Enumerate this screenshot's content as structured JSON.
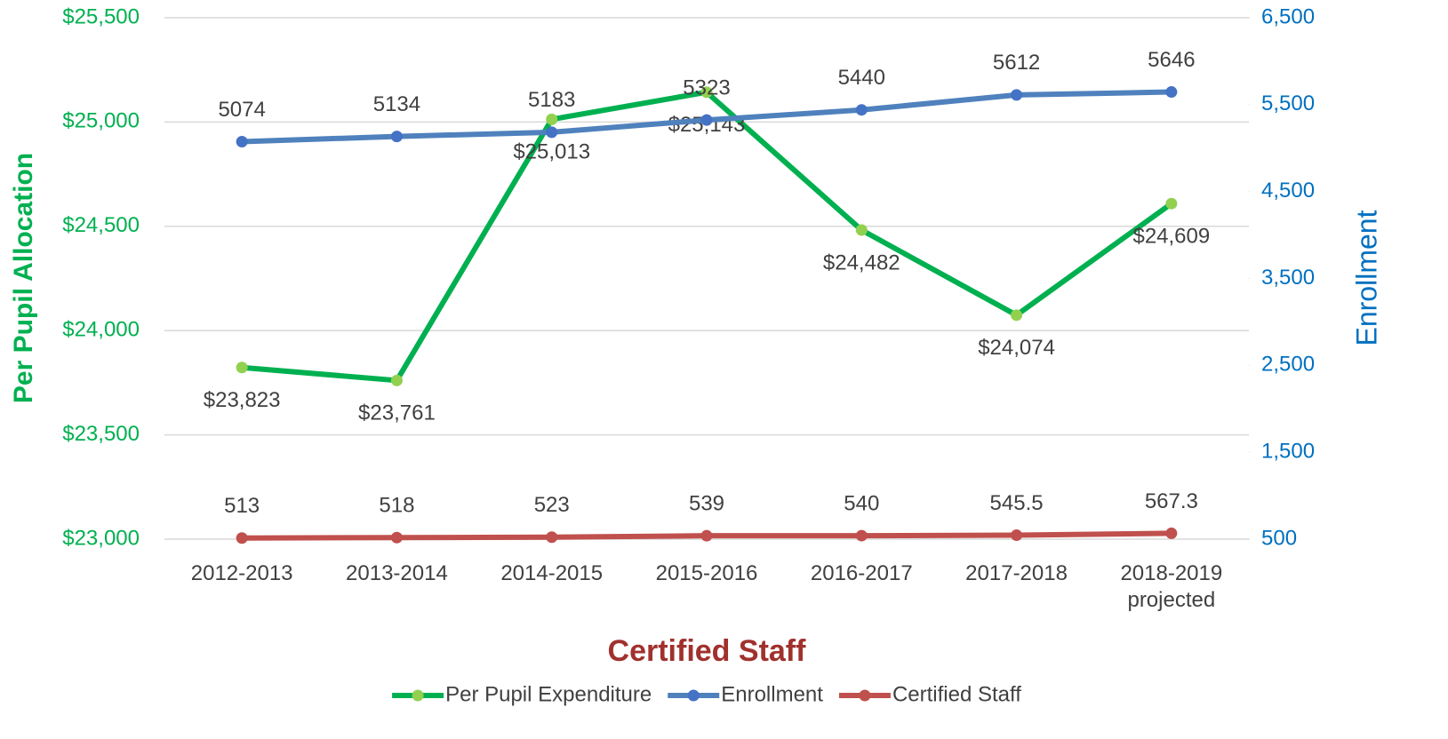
{
  "chart_data": {
    "type": "line",
    "categories": [
      "2012-2013",
      "2013-2014",
      "2014-2015",
      "2015-2016",
      "2016-2017",
      "2017-2018",
      "2018-2019 projected"
    ],
    "series": [
      {
        "name": "Per Pupil Expenditure",
        "color": "#00b050",
        "marker_color": "#92d050",
        "axis": "y",
        "values": [
          23823,
          23761,
          25013,
          25143,
          24482,
          24074,
          24609
        ],
        "value_labels": [
          "$23,823",
          "$23,761",
          "$25,013",
          "$25,143",
          "$24,482",
          "$24,074",
          "$24,609"
        ]
      },
      {
        "name": "Enrollment",
        "color": "#4f81bd",
        "marker_color": "#4472c4",
        "axis": "y2",
        "values": [
          5074,
          5134,
          5183,
          5323,
          5440,
          5612,
          5646
        ]
      },
      {
        "name": "Certified Staff",
        "color": "#c0504d",
        "marker_color": "#c0504d",
        "axis": "y2",
        "values": [
          513,
          518,
          523,
          539,
          540,
          545.5,
          567.3
        ]
      }
    ],
    "ylabel": "Per Pupil Allocation",
    "y2label": "Enrollment",
    "xlabel": "Certified Staff",
    "ylim": [
      23000,
      25500
    ],
    "yticks": [
      {
        "value": 23000,
        "label": "$23,000"
      },
      {
        "value": 23500,
        "label": "$23,500"
      },
      {
        "value": 24000,
        "label": "$24,000"
      },
      {
        "value": 24500,
        "label": "$24,500"
      },
      {
        "value": 25000,
        "label": "$25,000"
      },
      {
        "value": 25500,
        "label": "$25,500"
      }
    ],
    "y2lim": [
      500,
      6500
    ],
    "y2ticks": [
      500,
      {
        "value": 1500,
        "label": "1,500"
      },
      {
        "value": 2500,
        "label": "2,500"
      },
      {
        "value": 3500,
        "label": "3,500"
      },
      {
        "value": 4500,
        "label": "4,500"
      },
      {
        "value": 5500,
        "label": "5,500"
      },
      {
        "value": 6500,
        "label": "6,500"
      }
    ],
    "grid": true,
    "legend": "bottom"
  }
}
